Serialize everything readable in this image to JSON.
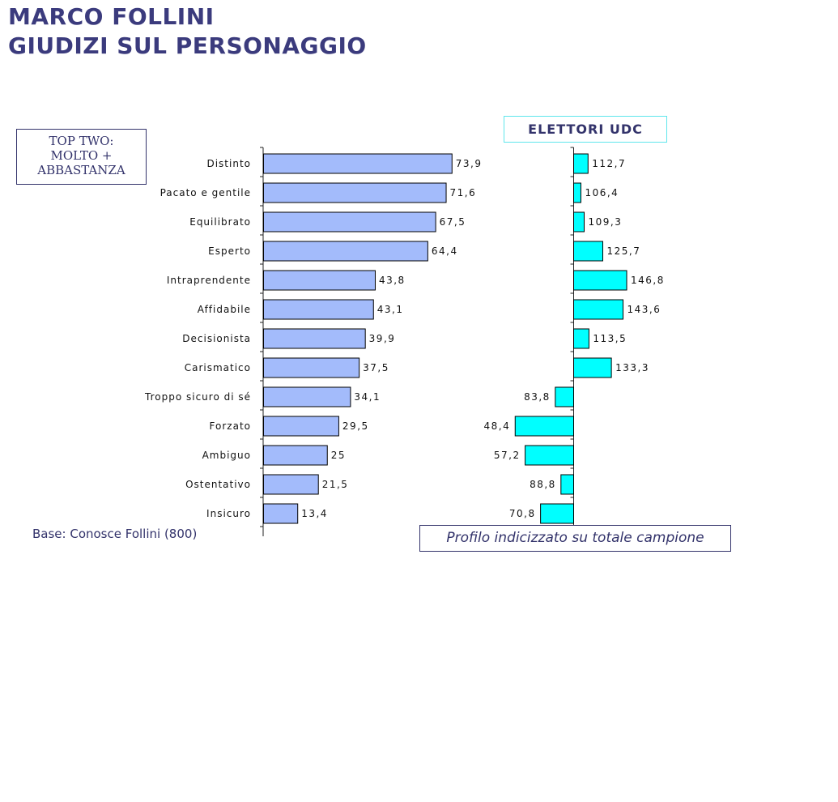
{
  "header": {
    "title_line1": "MARCO FOLLINI",
    "title_line2": "GIUDIZI SUL PERSONAGGIO"
  },
  "legend_box": {
    "line1": "TOP TWO:",
    "line2": "MOLTO +",
    "line3": "ABBASTANZA"
  },
  "udc_box": {
    "label": "ELETTORI UDC"
  },
  "footer": {
    "base": "Base: Conosce Follini (800)",
    "profilo": "Profilo indicizzato su totale campione"
  },
  "colors": {
    "left_bar": "#a3bbfb",
    "right_bar": "#00ffff",
    "title": "#3b3b7d"
  },
  "chart_data": [
    {
      "type": "bar",
      "orientation": "horizontal",
      "categories": [
        "Distinto",
        "Pacato  e gentile",
        "Equilibrato",
        "Esperto",
        "Intraprendente",
        "Affidabile",
        "Decisionista",
        "Carismatico",
        "Troppo sicuro di sé",
        "Forzato",
        "Ambiguo",
        "Ostentativo",
        "Insicuro"
      ],
      "values": [
        73.9,
        71.6,
        67.5,
        64.4,
        43.8,
        43.1,
        39.9,
        37.5,
        34.1,
        29.5,
        25,
        21.5,
        13.4
      ],
      "value_labels": [
        "73,9",
        "71,6",
        "67,5",
        "64,4",
        "43,8",
        "43,1",
        "39,9",
        "37,5",
        "34,1",
        "29,5",
        "25",
        "21,5",
        "13,4"
      ],
      "xlim": [
        0,
        100
      ],
      "grid": false
    },
    {
      "type": "bar",
      "orientation": "horizontal",
      "baseline": 100,
      "categories": [
        "Distinto",
        "Pacato  e gentile",
        "Equilibrato",
        "Esperto",
        "Intraprendente",
        "Affidabile",
        "Decisionista",
        "Carismatico",
        "Troppo sicuro di sé",
        "Forzato",
        "Ambiguo",
        "Ostentativo",
        "Insicuro"
      ],
      "values": [
        112.7,
        106.4,
        109.3,
        125.7,
        146.8,
        143.6,
        113.5,
        133.3,
        83.8,
        48.4,
        57.2,
        88.8,
        70.8
      ],
      "value_labels": [
        "112,7",
        "106,4",
        "109,3",
        "125,7",
        "146,8",
        "143,6",
        "113,5",
        "133,3",
        "83,8",
        "48,4",
        "57,2",
        "88,8",
        "70,8"
      ],
      "xlim": [
        0,
        200
      ],
      "grid": false
    }
  ]
}
